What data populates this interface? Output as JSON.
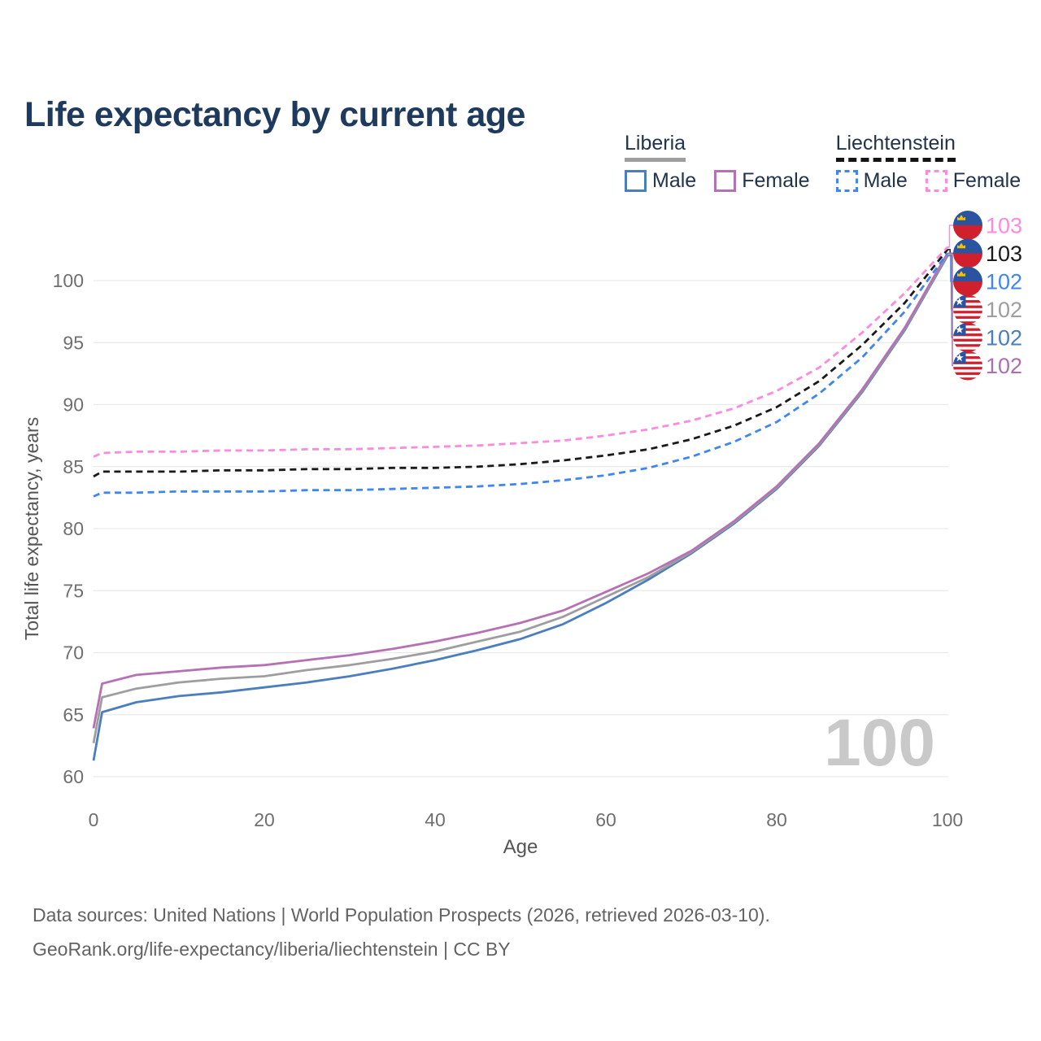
{
  "header": {
    "title": "Life expectancy by current age"
  },
  "legend": {
    "groups": [
      {
        "title": "Liberia",
        "line_style": "solid",
        "underline_color": "#9e9e9e",
        "items": [
          {
            "label": "Male",
            "color": "#4a7ebc"
          },
          {
            "label": "Female",
            "color": "#b671b5"
          }
        ]
      },
      {
        "title": "Liechtenstein",
        "line_style": "dashed",
        "underline_color": "#141414",
        "items": [
          {
            "label": "Male",
            "color": "#3f86f0"
          },
          {
            "label": "Female",
            "color": "#fb8ae0"
          }
        ]
      }
    ]
  },
  "watermark": {
    "text": "100"
  },
  "chart_data": {
    "type": "line",
    "title": "Life expectancy by current age",
    "xlabel": "Age",
    "ylabel": "Total life expectancy, years",
    "xlim": [
      0,
      100
    ],
    "ylim": [
      58,
      104
    ],
    "xticks": [
      0,
      20,
      40,
      60,
      80,
      100
    ],
    "yticks": [
      60,
      65,
      70,
      75,
      80,
      85,
      90,
      95,
      100
    ],
    "grid": "horizontal",
    "legend_position": "top-right",
    "x": [
      0,
      1,
      5,
      10,
      15,
      20,
      25,
      30,
      35,
      40,
      45,
      50,
      55,
      60,
      65,
      70,
      75,
      80,
      85,
      90,
      95,
      100
    ],
    "series": [
      {
        "name": "Liberia Male",
        "slug": "liberia-male",
        "country": "Liberia",
        "sex": "Male",
        "color": "#4a7ebc",
        "dash": false,
        "values": [
          61.3,
          65.2,
          66.0,
          66.5,
          66.8,
          67.2,
          67.6,
          68.1,
          68.7,
          69.4,
          70.2,
          71.1,
          72.3,
          74.0,
          75.9,
          78.0,
          80.4,
          83.2,
          86.7,
          91.0,
          96.0,
          102.0
        ]
      },
      {
        "name": "Liberia Both sexes",
        "slug": "liberia-both",
        "country": "Liberia",
        "sex": "Both",
        "color": "#9e9e9e",
        "dash": false,
        "values": [
          62.7,
          66.4,
          67.1,
          67.6,
          67.9,
          68.1,
          68.6,
          69.0,
          69.5,
          70.1,
          70.9,
          71.7,
          72.9,
          74.5,
          76.1,
          78.1,
          80.5,
          83.3,
          86.8,
          91.1,
          96.1,
          102.1
        ]
      },
      {
        "name": "Liberia Female",
        "slug": "liberia-female",
        "country": "Liberia",
        "sex": "Female",
        "color": "#b671b5",
        "dash": false,
        "values": [
          63.9,
          67.5,
          68.2,
          68.5,
          68.8,
          69.0,
          69.4,
          69.8,
          70.3,
          70.9,
          71.6,
          72.4,
          73.4,
          74.9,
          76.4,
          78.2,
          80.6,
          83.4,
          86.9,
          91.2,
          96.2,
          102.2
        ]
      },
      {
        "name": "Liechtenstein Male",
        "slug": "liechtenstein-male",
        "country": "Liechtenstein",
        "sex": "Male",
        "color": "#3f86f0",
        "dash": true,
        "values": [
          82.6,
          82.9,
          82.9,
          83.0,
          83.0,
          83.0,
          83.1,
          83.1,
          83.2,
          83.3,
          83.4,
          83.6,
          83.9,
          84.3,
          84.9,
          85.8,
          87.0,
          88.6,
          90.9,
          93.8,
          97.5,
          102.2
        ]
      },
      {
        "name": "Liechtenstein Both sexes",
        "slug": "liechtenstein-both",
        "country": "Liechtenstein",
        "sex": "Both",
        "color": "#1a1a1a",
        "dash": true,
        "values": [
          84.2,
          84.6,
          84.6,
          84.6,
          84.7,
          84.7,
          84.8,
          84.8,
          84.9,
          84.9,
          85.0,
          85.2,
          85.5,
          85.9,
          86.4,
          87.2,
          88.3,
          89.8,
          91.9,
          94.8,
          98.2,
          102.5
        ]
      },
      {
        "name": "Liechtenstein Female",
        "slug": "liechtenstein-female",
        "country": "Liechtenstein",
        "sex": "Female",
        "color": "#fb8ae0",
        "dash": true,
        "values": [
          85.8,
          86.1,
          86.2,
          86.2,
          86.3,
          86.3,
          86.4,
          86.4,
          86.5,
          86.6,
          86.7,
          86.9,
          87.1,
          87.5,
          88.0,
          88.7,
          89.7,
          91.1,
          93.0,
          95.8,
          99.0,
          102.7
        ]
      }
    ],
    "end_labels": [
      {
        "value": "103",
        "series": "liechtenstein-female",
        "color": "#fb8ae0",
        "flag": "liechtenstein"
      },
      {
        "value": "103",
        "series": "liechtenstein-both",
        "color": "#1a1a1a",
        "flag": "liechtenstein"
      },
      {
        "value": "102",
        "series": "liechtenstein-male",
        "color": "#3f86f0",
        "flag": "liechtenstein"
      },
      {
        "value": "102",
        "series": "liberia-both",
        "color": "#9e9e9e",
        "flag": "liberia"
      },
      {
        "value": "102",
        "series": "liberia-male",
        "color": "#4a7ebc",
        "flag": "liberia"
      },
      {
        "value": "102",
        "series": "liberia-female",
        "color": "#aa70ad",
        "flag": "liberia"
      }
    ],
    "flag_colors": {
      "liechtenstein": {
        "top": "#2a53a0",
        "bottom": "#d0202e",
        "crown": "#f2c200"
      },
      "liberia": {
        "stripe_red": "#d0202e",
        "stripe_white": "#ffffff",
        "canton": "#2a53a0",
        "star": "#ffffff"
      }
    }
  },
  "footer": {
    "line1": "Data sources: United Nations | World Population Prospects (2026, retrieved 2026-03-10).",
    "line2": "GeoRank.org/life-expectancy/liberia/liechtenstein | CC BY"
  }
}
